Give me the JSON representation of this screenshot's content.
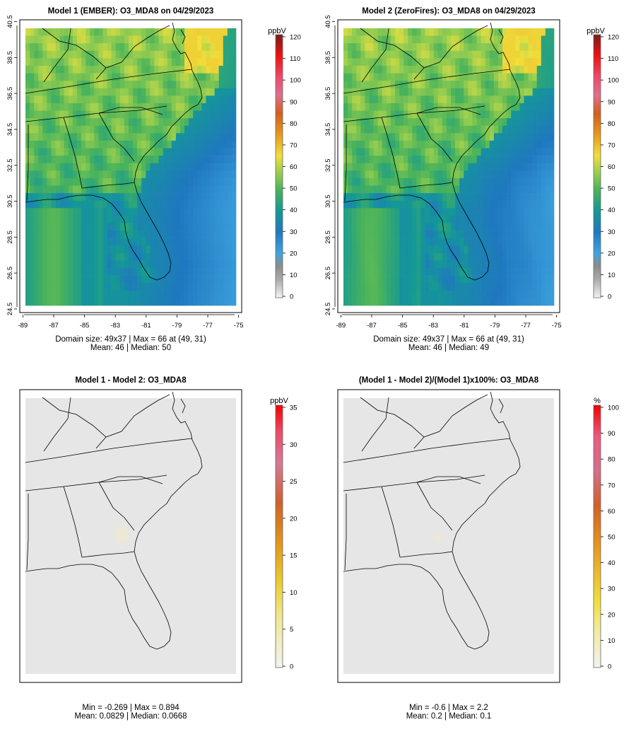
{
  "chart_data": [
    {
      "type": "heatmap",
      "title": "Model 1 (EMBER): O3_MDA8 on 04/29/2023",
      "units": "ppbV",
      "field": "model1",
      "x_ticks": [
        "-89",
        "-87",
        "-85",
        "-83",
        "-81",
        "-79",
        "-77",
        "-75"
      ],
      "y_ticks": [
        "24.5",
        "26.5",
        "28.5",
        "30.5",
        "32.5",
        "34.5",
        "36.5",
        "38.5",
        "40.5"
      ],
      "lon_range": [
        -89.2,
        -74.8
      ],
      "lat_range": [
        24.3,
        40.6
      ],
      "colorbar": {
        "min": 0,
        "max": 120,
        "tick_values": [
          0,
          10,
          20,
          30,
          40,
          50,
          60,
          70,
          80,
          90,
          100,
          110,
          120
        ],
        "tick_labels": [
          "0",
          "10",
          "20",
          "30",
          "40",
          "50",
          "60",
          "70",
          "80",
          "90",
          "100",
          "110",
          "120"
        ]
      },
      "stats_line1": "Domain size: 49x37 | Max = 66 at (49, 31)",
      "stats_line2": "Mean: 46 | Median: 50",
      "grid": "49x37",
      "max": 66,
      "max_location": [
        49,
        31
      ],
      "mean": 46,
      "median": 50
    },
    {
      "type": "heatmap",
      "title": "Model 2 (ZeroFires): O3_MDA8 on 04/29/2023",
      "units": "ppbV",
      "field": "model2",
      "x_ticks": [
        "-89",
        "-87",
        "-85",
        "-83",
        "-81",
        "-79",
        "-77",
        "-75"
      ],
      "y_ticks": [
        "24.5",
        "26.5",
        "28.5",
        "30.5",
        "32.5",
        "34.5",
        "36.5",
        "38.5",
        "40.5"
      ],
      "lon_range": [
        -89.2,
        -74.8
      ],
      "lat_range": [
        24.3,
        40.6
      ],
      "colorbar": {
        "min": 0,
        "max": 120,
        "tick_values": [
          0,
          10,
          20,
          30,
          40,
          50,
          60,
          70,
          80,
          90,
          100,
          110,
          120
        ],
        "tick_labels": [
          "0",
          "10",
          "20",
          "30",
          "40",
          "50",
          "60",
          "70",
          "80",
          "90",
          "100",
          "110",
          "120"
        ]
      },
      "stats_line1": "Domain size: 49x37 | Max = 66 at (49, 31)",
      "stats_line2": "Mean: 46 | Median: 49",
      "grid": "49x37",
      "max": 66,
      "max_location": [
        49,
        31
      ],
      "mean": 46,
      "median": 49
    },
    {
      "type": "heatmap",
      "title": "Model 1 - Model 2: O3_MDA8",
      "units": "ppbV",
      "field": "diff",
      "x_ticks": [],
      "y_ticks": [],
      "lon_range": [
        -89.2,
        -74.8
      ],
      "lat_range": [
        24.3,
        40.6
      ],
      "colorbar": {
        "min": 0,
        "max": 35,
        "tick_values": [
          0,
          5,
          10,
          15,
          20,
          25,
          30,
          35
        ],
        "tick_labels": [
          "0",
          "5",
          "10",
          "15",
          "20",
          "25",
          "30",
          "35"
        ]
      },
      "stats_line1": "Min = -0.269 | Max = 0.894",
      "stats_line2": "Mean: 0.0829 | Median: 0.0668",
      "min": -0.269,
      "max": 0.894,
      "mean": 0.0829,
      "median": 0.0668
    },
    {
      "type": "heatmap",
      "title": "(Model 1 - Model 2)/(Model 1)x100%: O3_MDA8",
      "units": "%",
      "field": "pct",
      "x_ticks": [],
      "y_ticks": [],
      "lon_range": [
        -89.2,
        -74.8
      ],
      "lat_range": [
        24.3,
        40.6
      ],
      "colorbar": {
        "min": 0,
        "max": 100,
        "tick_values": [
          0,
          10,
          20,
          30,
          40,
          50,
          60,
          70,
          80,
          90,
          100
        ],
        "tick_labels": [
          "0",
          "10",
          "20",
          "30",
          "40",
          "50",
          "60",
          "70",
          "80",
          "90",
          "100"
        ]
      },
      "stats_line1": "Min = -0.6 | Max = 2.2",
      "stats_line2": "Mean: 0.2 | Median: 0.1",
      "min": -0.6,
      "max": 2.2,
      "mean": 0.2,
      "median": 0.1
    }
  ],
  "colors": {
    "ppb_palette": [
      "#f0f0f0",
      "#bdbdbd",
      "#8a8a8a",
      "#3ea4df",
      "#1f78bf",
      "#149896",
      "#4ab35a",
      "#9fd04e",
      "#f1df3c",
      "#e69a1c",
      "#d45e1d",
      "#e35d8f",
      "#f21a1a",
      "#7a1c1c"
    ],
    "pct_palette": [
      "#f0f0f0",
      "#f2ea9a",
      "#f1df3c",
      "#eab52a",
      "#e38a1a",
      "#d2602a",
      "#d46f7c",
      "#e3709c",
      "#f23a4a",
      "#f50000"
    ],
    "diff_background": "#e6e6e6",
    "map_lines": "#000000"
  }
}
